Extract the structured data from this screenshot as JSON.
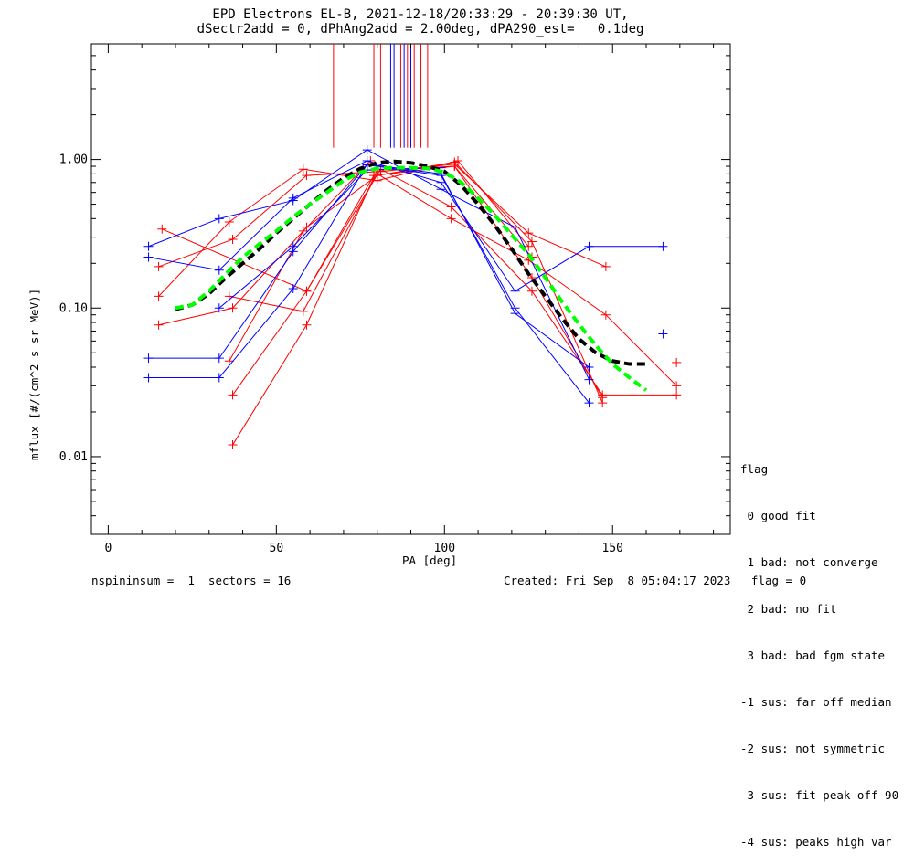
{
  "header": {
    "title_line1": "EPD Electrons EL-B, 2021-12-18/20:33:29 - 20:39:30 UT,",
    "title_line2": "dSectr2add = 0, dPhAng2add = 2.00deg, dPA290_est=   0.1deg"
  },
  "footer": {
    "left": "nspininsum =  1  sectors = 16",
    "right": "Created: Fri Sep  8 05:04:17 2023   flag = 0"
  },
  "legend": {
    "title": "flag",
    "items": [
      " 0 good fit",
      " 1 bad: not converge",
      " 2 bad: no fit",
      " 3 bad: bad fgm state",
      "-1 sus: far off median",
      "-2 sus: not symmetric",
      "-3 sus: fit peak off 90",
      "-4 sus: peaks high var"
    ]
  },
  "colors": {
    "red": "#ff0000",
    "blue": "#0000ff",
    "black": "#000000",
    "green": "#00ff00"
  },
  "chart_data": {
    "type": "line",
    "xlabel": "PA [deg]",
    "ylabel": "mflux [#/(cm^2 s sr MeV)]",
    "xlim": [
      -5,
      185
    ],
    "ylim": [
      0.003,
      6
    ],
    "yscale": "log",
    "xticks": [
      0,
      50,
      100,
      150
    ],
    "xtick_labels": [
      "0",
      "50",
      "100",
      "150"
    ],
    "yticks": [
      0.01,
      0.1,
      1.0
    ],
    "ytick_labels": [
      "0.01",
      "0.10",
      "1.00"
    ],
    "series": [
      {
        "color": "red",
        "x": [
          16,
          59,
          79,
          103,
          126,
          147
        ],
        "y": [
          0.34,
          0.13,
          0.78,
          0.9,
          0.16,
          0.025
        ]
      },
      {
        "color": "red",
        "x": [
          15,
          37,
          59,
          81,
          103,
          125,
          148
        ],
        "y": [
          0.19,
          0.29,
          0.78,
          0.83,
          0.93,
          0.32,
          0.19
        ]
      },
      {
        "color": "red",
        "x": [
          15,
          36,
          58,
          80,
          104,
          125
        ],
        "y": [
          0.12,
          0.38,
          0.86,
          0.72,
          0.98,
          0.26
        ]
      },
      {
        "color": "red",
        "x": [
          15,
          37,
          59,
          80,
          103,
          126,
          147
        ],
        "y": [
          0.077,
          0.1,
          0.35,
          0.78,
          0.96,
          0.28,
          0.023
        ]
      },
      {
        "color": "red",
        "x": [
          36,
          58,
          80,
          102,
          125,
          148,
          169
        ],
        "y": [
          0.12,
          0.095,
          0.8,
          0.4,
          0.21,
          0.09,
          0.03
        ]
      },
      {
        "color": "red",
        "x": [
          37,
          59,
          81,
          102,
          126,
          147,
          169
        ],
        "y": [
          0.026,
          0.13,
          0.86,
          0.48,
          0.13,
          0.026,
          0.026
        ]
      },
      {
        "color": "red",
        "x": [
          37,
          59,
          80,
          103,
          126
        ],
        "y": [
          0.012,
          0.077,
          0.85,
          0.9,
          0.22
        ]
      },
      {
        "color": "red",
        "x": [
          36,
          58,
          78
        ],
        "y": [
          0.044,
          0.33,
          0.98
        ]
      },
      {
        "color": "blue",
        "x": [
          12,
          33,
          55,
          77,
          99,
          121,
          143
        ],
        "y": [
          0.26,
          0.4,
          0.53,
          1.16,
          0.63,
          0.35,
          0.033
        ]
      },
      {
        "color": "blue",
        "x": [
          12,
          33,
          55,
          77,
          99,
          121,
          143,
          165
        ],
        "y": [
          0.22,
          0.18,
          0.55,
          0.98,
          0.7,
          0.13,
          0.26,
          0.26
        ]
      },
      {
        "color": "blue",
        "x": [
          12,
          33,
          55,
          77,
          99,
          121,
          143
        ],
        "y": [
          0.046,
          0.046,
          0.24,
          0.92,
          0.78,
          0.1,
          0.023
        ]
      },
      {
        "color": "blue",
        "x": [
          12,
          33,
          55,
          77,
          99,
          121,
          143
        ],
        "y": [
          0.034,
          0.034,
          0.135,
          0.93,
          0.8,
          0.092,
          0.04
        ]
      },
      {
        "color": "blue",
        "x": [
          33,
          55,
          77,
          99
        ],
        "y": [
          0.1,
          0.26,
          0.85,
          0.88
        ]
      }
    ],
    "points": [
      {
        "color": "red",
        "x": 169,
        "y": 0.043
      },
      {
        "color": "blue",
        "x": 165,
        "y": 0.067
      }
    ],
    "fits": [
      {
        "color": "black",
        "style": "dashed",
        "x": [
          20,
          25,
          30,
          35,
          40,
          45,
          50,
          55,
          60,
          65,
          70,
          75,
          80,
          85,
          90,
          95,
          100,
          105,
          110,
          115,
          120,
          125,
          130,
          135,
          140,
          145,
          150,
          155,
          160
        ],
        "y": [
          0.098,
          0.105,
          0.125,
          0.16,
          0.2,
          0.25,
          0.32,
          0.4,
          0.5,
          0.62,
          0.75,
          0.87,
          0.95,
          0.97,
          0.95,
          0.9,
          0.83,
          0.67,
          0.5,
          0.36,
          0.25,
          0.17,
          0.12,
          0.085,
          0.062,
          0.05,
          0.044,
          0.042,
          0.042
        ]
      },
      {
        "color": "green",
        "style": "dashed",
        "x": [
          20,
          25,
          30,
          35,
          40,
          45,
          50,
          55,
          60,
          65,
          70,
          75,
          80,
          85,
          90,
          95,
          100,
          105,
          110,
          115,
          120,
          125,
          130,
          135,
          140,
          145,
          150,
          155,
          160
        ],
        "y": [
          0.1,
          0.105,
          0.13,
          0.17,
          0.22,
          0.27,
          0.33,
          0.41,
          0.5,
          0.6,
          0.72,
          0.82,
          0.87,
          0.88,
          0.88,
          0.87,
          0.82,
          0.7,
          0.55,
          0.42,
          0.31,
          0.23,
          0.16,
          0.11,
          0.078,
          0.056,
          0.042,
          0.034,
          0.028
        ]
      }
    ],
    "vlines": [
      {
        "color": "red",
        "x": 67
      },
      {
        "color": "red",
        "x": 79
      },
      {
        "color": "red",
        "x": 81
      },
      {
        "color": "blue",
        "x": 84
      },
      {
        "color": "blue",
        "x": 85
      },
      {
        "color": "red",
        "x": 87
      },
      {
        "color": "blue",
        "x": 88
      },
      {
        "color": "red",
        "x": 89
      },
      {
        "color": "blue",
        "x": 90
      },
      {
        "color": "red",
        "x": 91
      },
      {
        "color": "red",
        "x": 93
      },
      {
        "color": "red",
        "x": 95
      }
    ]
  }
}
